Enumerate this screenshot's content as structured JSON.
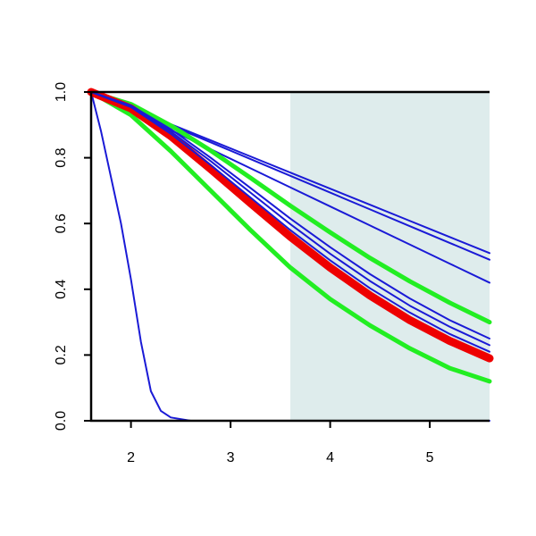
{
  "chart_data": {
    "type": "line",
    "xlim": [
      1.6,
      5.6
    ],
    "ylim": [
      0,
      1
    ],
    "xticks": [
      2,
      3,
      4,
      5
    ],
    "yticks": [
      {
        "value": 0,
        "label": "0.0"
      },
      0.2,
      0.4,
      0.6,
      0.8,
      {
        "value": 1,
        "label": "1.0"
      }
    ],
    "shade_xlim": [
      3.6,
      5.6
    ],
    "shade_color": "#deecec",
    "x": [
      1.6,
      2.0,
      2.4,
      2.8,
      3.2,
      3.6,
      4.0,
      4.4,
      4.8,
      5.2,
      5.6
    ],
    "series": [
      {
        "color": "#1a1ad6",
        "width": 2,
        "x": [
          1.6,
          1.7,
          1.8,
          1.9,
          2.0,
          2.1,
          2.2,
          2.3,
          2.4,
          2.6,
          5.6
        ],
        "values": [
          1,
          0.88,
          0.74,
          0.6,
          0.43,
          0.24,
          0.09,
          0.03,
          0.01,
          0,
          0
        ]
      },
      {
        "color": "#1a1ad6",
        "width": 2,
        "values": [
          1,
          0.951,
          0.902,
          0.853,
          0.804,
          0.755,
          0.706,
          0.657,
          0.608,
          0.559,
          0.51
        ]
      },
      {
        "color": "#1a1ad6",
        "width": 2,
        "values": [
          1,
          0.949,
          0.898,
          0.847,
          0.796,
          0.745,
          0.694,
          0.643,
          0.592,
          0.541,
          0.49
        ]
      },
      {
        "color": "#1a1ad6",
        "width": 2,
        "values": [
          1,
          0.942,
          0.884,
          0.826,
          0.768,
          0.71,
          0.652,
          0.594,
          0.536,
          0.478,
          0.42
        ]
      },
      {
        "color": "#22ee22",
        "width": 5,
        "values": [
          1,
          0.963,
          0.898,
          0.822,
          0.739,
          0.654,
          0.573,
          0.495,
          0.424,
          0.359,
          0.3
        ]
      },
      {
        "color": "#22ee22",
        "width": 5,
        "values": [
          1,
          0.93,
          0.82,
          0.7,
          0.58,
          0.466,
          0.37,
          0.29,
          0.22,
          0.16,
          0.12
        ]
      },
      {
        "color": "#ee0000",
        "width": 9,
        "values": [
          1,
          0.95,
          0.866,
          0.766,
          0.662,
          0.56,
          0.466,
          0.381,
          0.306,
          0.243,
          0.19
        ]
      },
      {
        "color": "#1a1ad6",
        "width": 2,
        "values": [
          1,
          0.954,
          0.873,
          0.778,
          0.679,
          0.58,
          0.488,
          0.403,
          0.329,
          0.264,
          0.21
        ]
      },
      {
        "color": "#1a1ad6",
        "width": 2,
        "values": [
          1,
          0.956,
          0.88,
          0.79,
          0.694,
          0.598,
          0.508,
          0.425,
          0.35,
          0.286,
          0.23
        ]
      },
      {
        "color": "#1a1ad6",
        "width": 2,
        "values": [
          1,
          0.959,
          0.887,
          0.8,
          0.708,
          0.615,
          0.528,
          0.446,
          0.372,
          0.306,
          0.25
        ]
      }
    ]
  }
}
